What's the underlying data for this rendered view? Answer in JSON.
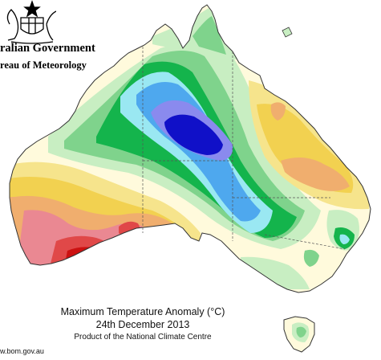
{
  "header": {
    "government": "ralian Government",
    "bureau": "reau of Meteorology"
  },
  "title": {
    "line1": "Maximum Temperature Anomaly (°C)",
    "line2": "24th December 2013",
    "line3": "Product of the National Climate Centre"
  },
  "footer": {
    "url": "w.bom.gov.au"
  },
  "map": {
    "subject": "Australia",
    "anomaly_palette": {
      "very_cold": "#1010c8",
      "cold": "#8a8aee",
      "cool": "#4ea8ee",
      "cool_light": "#9ae8f2",
      "slightly_cool": "#14b44c",
      "below": "#7fd38c",
      "slightly_below": "#c8eec2",
      "near_normal": "#fffadc",
      "slightly_above": "#f6e48c",
      "above": "#f2d150",
      "warm": "#f0ae6e",
      "hot": "#ea8892",
      "very_hot": "#e04848",
      "extreme": "#cc1111"
    }
  }
}
